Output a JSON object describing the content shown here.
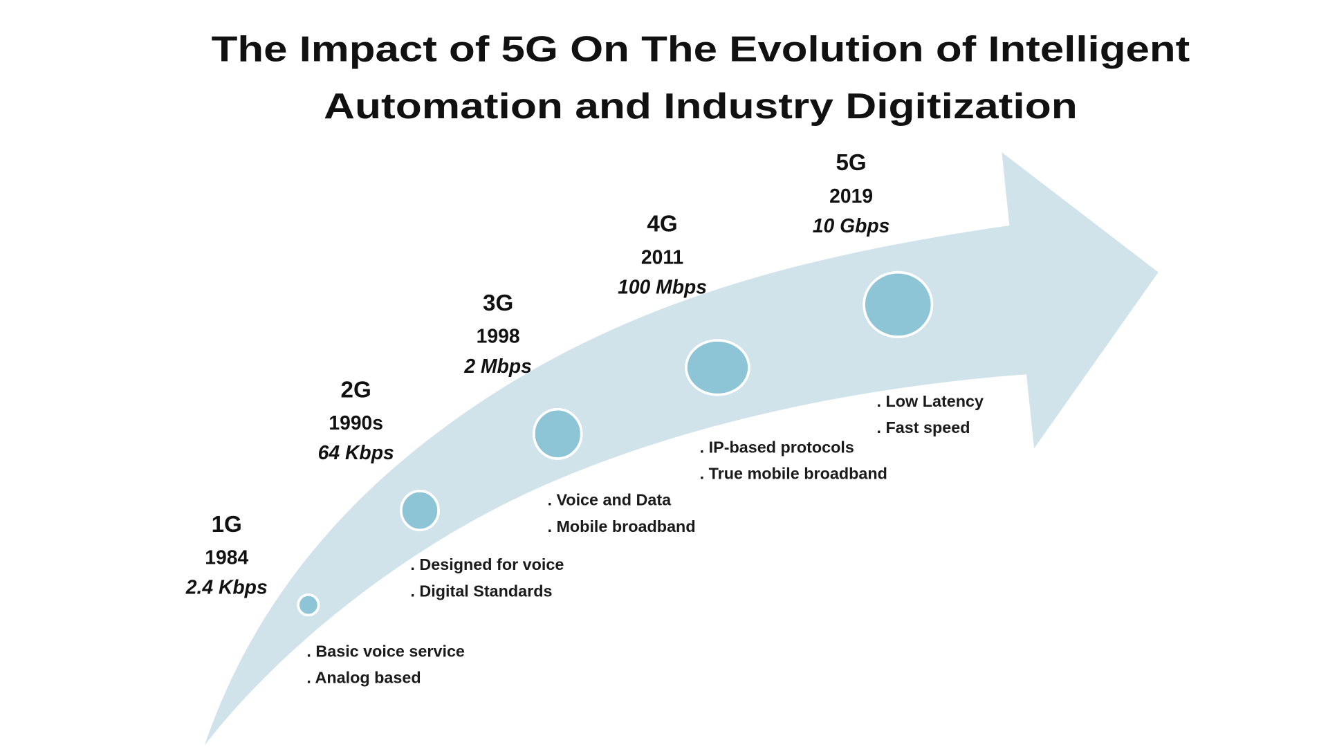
{
  "title": {
    "line1": "The Impact of 5G On The Evolution of Intelligent",
    "line2": "Automation and Industry Digitization"
  },
  "colors": {
    "arrow": "#d0e3eb",
    "node": "#8ec5d6",
    "node_border": "#ffffff",
    "text": "#111111"
  },
  "generations": [
    {
      "name": "1G",
      "year": "1984",
      "speed": "2.4 Kbps",
      "features": [
        ". Basic voice service",
        ". Analog based"
      ]
    },
    {
      "name": "2G",
      "year": "1990s",
      "speed": "64 Kbps",
      "features": [
        ". Designed for voice",
        ". Digital Standards"
      ]
    },
    {
      "name": "3G",
      "year": "1998",
      "speed": "2 Mbps",
      "features": [
        ".  Voice and Data",
        ". Mobile broadband"
      ]
    },
    {
      "name": "4G",
      "year": "2011",
      "speed": "100 Mbps",
      "features": [
        ". IP-based protocols",
        ". True mobile broadband"
      ]
    },
    {
      "name": "5G",
      "year": "2019",
      "speed": "10 Gbps",
      "features": [
        ". Low Latency",
        ". Fast speed"
      ]
    }
  ]
}
